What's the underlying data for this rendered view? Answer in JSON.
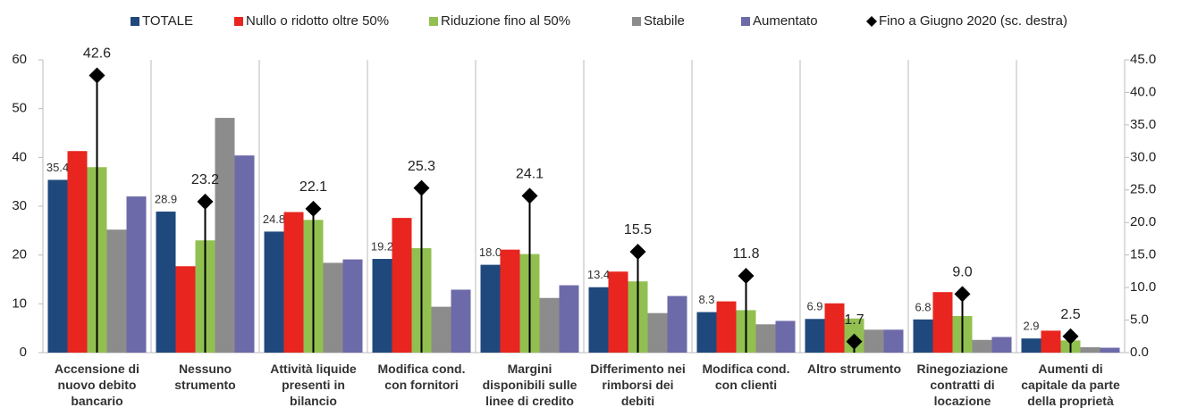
{
  "chart_data": {
    "type": "bar",
    "categories": [
      "Accensione di\nnuovo debito\nbancario",
      "Nessuno\nstrumento",
      "Attività liquide\npresenti in\nbilancio",
      "Modifica cond.\ncon fornitori",
      "Margini\ndisponibili sulle\nlinee di credito",
      "Differimento nei\nrimborsi dei\ndebiti",
      "Modifica cond.\ncon clienti",
      "Altro strumento",
      "Rinegoziazione\ncontratti di\nlocazione",
      "Aumenti di\ncapitale da parte\ndella proprietà"
    ],
    "series": [
      {
        "name": "TOTALE",
        "color": "#1f497d",
        "values": [
          35.4,
          28.9,
          24.8,
          19.2,
          18.0,
          13.4,
          8.3,
          6.9,
          6.8,
          2.9
        ],
        "value_labels": [
          "35.4",
          "28.9",
          "24.8",
          "19.2",
          "18.0",
          "13.4",
          "8.3",
          "6.9",
          "6.8",
          "2.9"
        ]
      },
      {
        "name": "Nullo o ridotto oltre 50%",
        "color": "#e8251f",
        "values": [
          41.3,
          17.7,
          28.8,
          27.6,
          21.1,
          16.6,
          10.5,
          10.1,
          12.4,
          4.5
        ]
      },
      {
        "name": "Riduzione fino al 50%",
        "color": "#92c050",
        "values": [
          38.0,
          23.0,
          27.2,
          21.4,
          20.2,
          14.6,
          8.7,
          7.0,
          7.5,
          2.5
        ]
      },
      {
        "name": "Stabile",
        "color": "#8c8c8c",
        "values": [
          25.2,
          48.1,
          18.4,
          9.4,
          11.2,
          8.1,
          5.8,
          4.7,
          2.6,
          1.1
        ]
      },
      {
        "name": "Aumentato",
        "color": "#6d6aa9",
        "values": [
          32.0,
          40.4,
          19.1,
          12.9,
          13.8,
          11.6,
          6.5,
          4.7,
          3.2,
          1.0
        ]
      },
      {
        "name": "Fino a Giugno 2020 (sc. destra)",
        "color": "#000000",
        "axis": "y2",
        "marker": "diamond",
        "values": [
          42.6,
          23.2,
          22.1,
          25.3,
          24.1,
          15.5,
          11.8,
          1.7,
          9.0,
          2.5
        ],
        "value_labels": [
          "42.6",
          "23.2",
          "22.1",
          "25.3",
          "24.1",
          "15.5",
          "11.8",
          "1.7",
          "9.0",
          "2.5"
        ]
      }
    ],
    "ylim": [
      0,
      60
    ],
    "yticks": [
      0,
      10,
      20,
      30,
      40,
      50,
      60
    ],
    "y2lim": [
      0,
      45
    ],
    "y2ticks": [
      {
        "value": 0,
        "label": "0.0"
      },
      {
        "value": 5,
        "label": "5.0"
      },
      {
        "value": 10,
        "label": "10.0"
      },
      {
        "value": 15,
        "label": "15.0"
      },
      {
        "value": 20,
        "label": "20.0"
      },
      {
        "value": 25,
        "label": "25.0"
      },
      {
        "value": 30,
        "label": "30.0"
      },
      {
        "value": 35,
        "label": "35.0"
      },
      {
        "value": 40,
        "label": "40.0"
      },
      {
        "value": 45,
        "label": "45.0"
      }
    ],
    "legend": "top"
  }
}
